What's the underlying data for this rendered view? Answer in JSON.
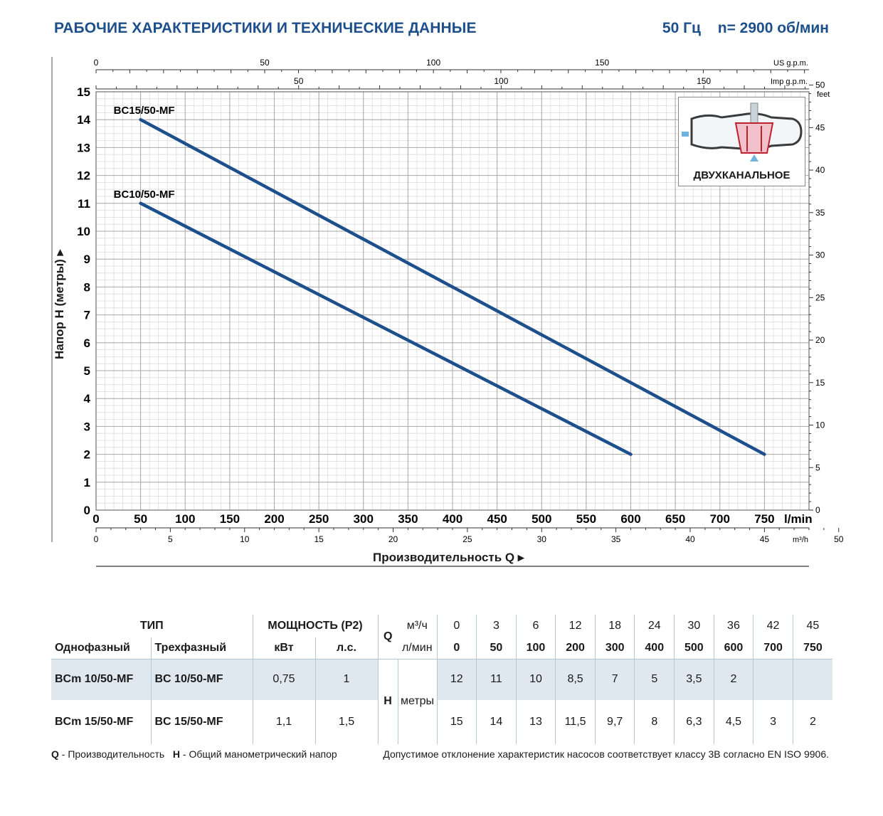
{
  "header": {
    "title": "РАБОЧИЕ ХАРАКТЕРИСТИКИ И ТЕХНИЧЕСКИЕ ДАННЫЕ",
    "frequency": "50 Гц",
    "speed": "n= 2900 об/мин"
  },
  "chart_data": {
    "type": "line",
    "xlabel": "Производительность Q",
    "ylabel": "Напор H (метры)",
    "x_unit": "l/min",
    "xlim": [
      0,
      800
    ],
    "ylim": [
      0,
      15
    ],
    "grid": true,
    "x_ticks": [
      0,
      50,
      100,
      150,
      200,
      250,
      300,
      350,
      400,
      450,
      500,
      550,
      600,
      650,
      700,
      750
    ],
    "y_ticks": [
      0,
      1,
      2,
      3,
      4,
      5,
      6,
      7,
      8,
      9,
      10,
      11,
      12,
      13,
      14,
      15
    ],
    "secondary_axes": {
      "m3h": {
        "unit": "m³/h",
        "ticks": [
          0,
          5,
          10,
          15,
          20,
          25,
          30,
          35,
          40,
          45,
          50
        ]
      },
      "us_gpm": {
        "unit": "US g.p.m.",
        "ticks": [
          0,
          50,
          100,
          150
        ]
      },
      "imp_gpm": {
        "unit": "Imp g.p.m.",
        "ticks": [
          50,
          100,
          150
        ]
      },
      "feet": {
        "unit": "feet",
        "ticks": [
          0,
          5,
          10,
          15,
          20,
          25,
          30,
          35,
          40,
          45,
          50
        ]
      }
    },
    "series": [
      {
        "name": "BC15/50-MF",
        "x": [
          50,
          750
        ],
        "y": [
          14,
          2
        ],
        "color": "#1c4f8c"
      },
      {
        "name": "BC10/50-MF",
        "x": [
          50,
          600
        ],
        "y": [
          11,
          2
        ],
        "color": "#1c4f8c"
      }
    ]
  },
  "inset": {
    "label": "ДВУХКАНАЛЬНОЕ"
  },
  "table": {
    "type_header": "ТИП",
    "power_header": "МОЩНОСТЬ (P2)",
    "single_phase": "Однофазный",
    "three_phase": "Трехфазный",
    "kw": "кВт",
    "hp": "л.с.",
    "q_symbol": "Q",
    "h_symbol": "H",
    "m3h_unit": "м³/ч",
    "lmin_unit": "л/мин",
    "h_unit": "метры",
    "q_m3h": [
      "0",
      "3",
      "6",
      "12",
      "18",
      "24",
      "30",
      "36",
      "42",
      "45"
    ],
    "q_lmin": [
      "0",
      "50",
      "100",
      "200",
      "300",
      "400",
      "500",
      "600",
      "700",
      "750"
    ],
    "rows": [
      {
        "single": "BCm 10/50-MF",
        "three": "BC 10/50-MF",
        "kw": "0,75",
        "hp": "1",
        "h": [
          "12",
          "11",
          "10",
          "8,5",
          "7",
          "5",
          "3,5",
          "2",
          "",
          ""
        ]
      },
      {
        "single": "BCm 15/50-MF",
        "three": "BC 15/50-MF",
        "kw": "1,1",
        "hp": "1,5",
        "h": [
          "15",
          "14",
          "13",
          "11,5",
          "9,7",
          "8",
          "6,3",
          "4,5",
          "3",
          "2"
        ]
      }
    ]
  },
  "footer": {
    "q_key": "Q",
    "q_text": " - Производительность",
    "h_key": "H",
    "h_text": " - Общий манометрический напор",
    "note": "Допустимое отклонение характеристик насосов соответствует классу 3B согласно EN ISO 9906."
  }
}
